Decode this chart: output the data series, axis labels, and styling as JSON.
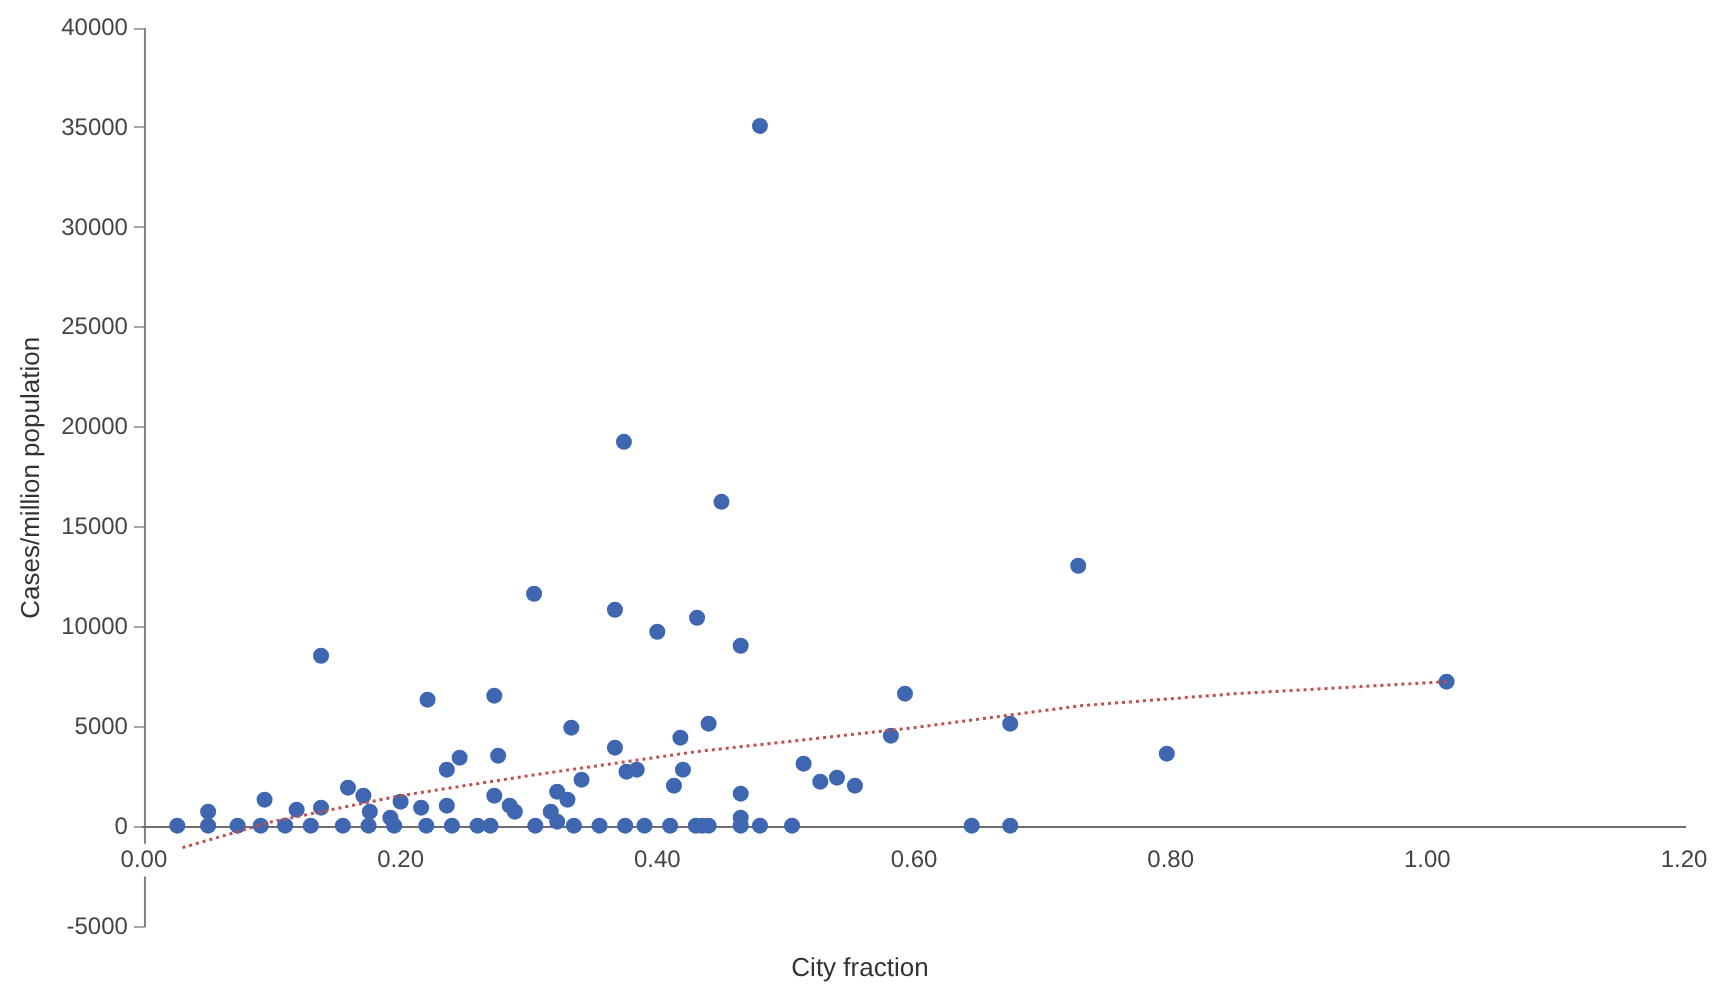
{
  "chart_data": {
    "type": "scatter",
    "xlabel": "City fraction",
    "ylabel": "Cases/million population",
    "xlim": [
      0,
      1.2
    ],
    "xticks": [
      {
        "value": 0,
        "label": "0.00"
      },
      {
        "value": 0.2,
        "label": "0.20"
      },
      {
        "value": 0.4,
        "label": "0.40"
      },
      {
        "value": 0.6,
        "label": "0.60"
      },
      {
        "value": 0.8,
        "label": "0.80"
      },
      {
        "value": 1,
        "label": "1.00"
      },
      {
        "value": 1.2,
        "label": "1.20"
      }
    ],
    "ylim": [
      -5000,
      40000
    ],
    "yticks": [
      -5000,
      0,
      5000,
      10000,
      15000,
      20000,
      25000,
      30000,
      35000,
      40000
    ],
    "grid": false,
    "legend": false,
    "marker": "circle",
    "series": [
      {
        "type": "scatter",
        "color": "#3f67b1",
        "x": [
          0.48,
          0.374,
          0.45,
          0.304,
          0.367,
          0.4,
          0.431,
          0.465,
          0.138,
          0.728,
          1.015,
          0.797,
          0.593,
          0.221,
          0.273,
          0.333,
          0.44,
          0.367,
          0.418,
          0.582,
          0.675,
          0.376,
          0.384,
          0.42,
          0.413,
          0.341,
          0.322,
          0.514,
          0.527,
          0.54,
          0.554,
          0.465,
          0.465,
          0.276,
          0.246,
          0.236,
          0.159,
          0.171,
          0.094,
          0.273,
          0.285,
          0.2,
          0.33,
          0.289,
          0.317,
          0.322,
          0.05,
          0.119,
          0.138,
          0.176,
          0.216,
          0.236,
          0.192,
          0.026,
          0.05,
          0.073,
          0.091,
          0.11,
          0.13,
          0.155,
          0.175,
          0.195,
          0.22,
          0.24,
          0.26,
          0.27,
          0.305,
          0.335,
          0.355,
          0.375,
          0.39,
          0.41,
          0.43,
          0.435,
          0.44,
          0.465,
          0.48,
          0.505,
          0.645,
          0.675
        ],
        "values": [
          35100,
          19300,
          16300,
          11700,
          10900,
          9800,
          10500,
          9100,
          8600,
          13100,
          7300,
          3700,
          6700,
          6400,
          6600,
          5000,
          5200,
          4000,
          4500,
          4600,
          5200,
          2800,
          2900,
          2900,
          2100,
          2400,
          1800,
          3200,
          2300,
          2500,
          2100,
          1700,
          500,
          3600,
          3500,
          2900,
          2000,
          1600,
          1400,
          1600,
          1100,
          1300,
          1400,
          800,
          800,
          300,
          800,
          900,
          1000,
          800,
          1000,
          1100,
          500,
          100,
          100,
          100,
          100,
          100,
          100,
          100,
          100,
          100,
          100,
          100,
          100,
          100,
          100,
          100,
          100,
          100,
          100,
          100,
          100,
          100,
          100,
          100,
          100,
          100,
          100,
          100
        ]
      },
      {
        "type": "line",
        "color": "#c0504d",
        "marker": "none",
        "line_style": "dotted",
        "x": [
          0.03,
          0.1,
          0.2,
          0.3,
          0.43,
          0.6,
          0.73,
          0.85,
          1.015
        ],
        "values": [
          -1000,
          300,
          1600,
          2600,
          3800,
          5000,
          6100,
          6700,
          7300
        ]
      }
    ]
  }
}
